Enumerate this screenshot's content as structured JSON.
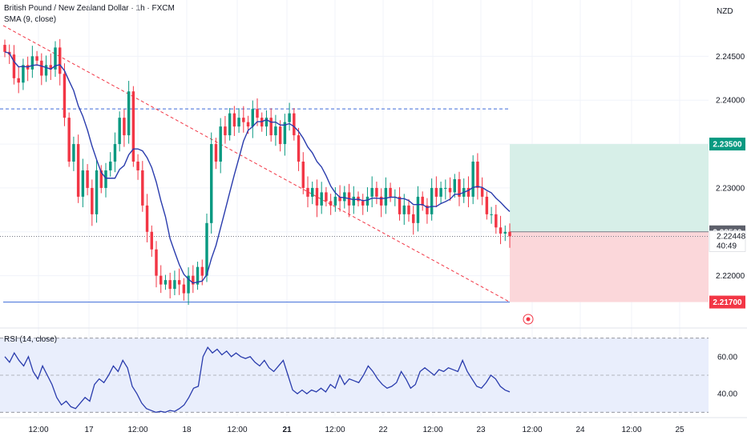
{
  "header": {
    "title": "British Pound / New Zealand Dollar · 1h · FXCM",
    "sma_label": "SMA (9, close)",
    "currency": "NZD"
  },
  "colors": {
    "up": "#089981",
    "down": "#f23645",
    "sma": "#2a3cad",
    "rsi": "#2a3cad",
    "hline": "#3d6bd9",
    "trendline": "#f23645",
    "target_zone": "#d7efe8",
    "stop_zone": "#fbd7da",
    "rsi_band": "#e9eefc",
    "current_price": "#787b86"
  },
  "chart_data": [
    {
      "type": "candlestick",
      "title": "British Pound / New Zealand Dollar · 1h · FXCM",
      "indicator": "SMA (9, close)",
      "y_ticks": [
        2.245,
        2.24,
        2.235,
        2.23,
        2.225,
        2.22
      ],
      "y_tick_labels": [
        "2.24500",
        "2.24000",
        "2.23500",
        "2.23000",
        "2.22500",
        "2.22000"
      ],
      "x_tick_labels": [
        "12:00",
        "17",
        "12:00",
        "18",
        "12:00",
        "21",
        "12:00",
        "22",
        "12:00",
        "23",
        "12:00",
        "24",
        "12:00",
        "25"
      ],
      "ylim": [
        2.2145,
        2.2505
      ],
      "close_series": [
        2.2455,
        2.2452,
        2.2425,
        2.242,
        2.244,
        2.2435,
        2.245,
        2.2445,
        2.2428,
        2.244,
        2.2435,
        2.246,
        2.243,
        2.238,
        2.233,
        2.235,
        2.229,
        2.232,
        2.23,
        2.227,
        2.232,
        2.23,
        2.232,
        2.233,
        2.235,
        2.238,
        2.236,
        2.241,
        2.233,
        2.232,
        2.228,
        2.225,
        2.223,
        2.22,
        2.219,
        2.2195,
        2.2185,
        2.2195,
        2.219,
        2.218,
        2.22,
        2.219,
        2.221,
        2.22,
        2.226,
        2.235,
        2.233,
        2.237,
        2.236,
        2.2385,
        2.237,
        2.238,
        2.2375,
        2.237,
        2.239,
        2.238,
        2.237,
        2.238,
        2.236,
        2.237,
        2.235,
        2.2375,
        2.2385,
        2.236,
        2.233,
        2.23,
        2.229,
        2.23,
        2.228,
        2.2295,
        2.2285,
        2.228,
        2.229,
        2.2285,
        2.2295,
        2.228,
        2.229,
        2.2285,
        2.228,
        2.229,
        2.23,
        2.229,
        2.228,
        2.23,
        2.229,
        2.229,
        2.227,
        2.228,
        2.227,
        2.226,
        2.229,
        2.228,
        2.227,
        2.23,
        2.229,
        2.23,
        2.23,
        2.2295,
        2.231,
        2.229,
        2.23,
        2.229,
        2.233,
        2.23,
        2.229,
        2.227,
        2.227,
        2.2255,
        2.2248,
        2.225,
        2.2245
      ],
      "sma_last": 2.2275,
      "current_price": "2.22448",
      "countdown": "40:49",
      "horizontal_lines": [
        2.239,
        2.217
      ],
      "trendline": {
        "from": 2.2485,
        "to": 2.217
      },
      "position": {
        "entry": "2.22500",
        "target": "2.23500",
        "stop": "2.21700"
      }
    },
    {
      "type": "line",
      "title": "RSI (14, close)",
      "ylim": [
        28,
        72
      ],
      "band": [
        30,
        70
      ],
      "midline": 50,
      "y_tick_labels": [
        "60.00",
        "40.00"
      ],
      "values": [
        60,
        57,
        62,
        58,
        55,
        60,
        52,
        48,
        55,
        50,
        45,
        38,
        34,
        36,
        33,
        32,
        35,
        38,
        36,
        45,
        48,
        46,
        50,
        55,
        52,
        58,
        54,
        44,
        40,
        35,
        32,
        31,
        30,
        30.5,
        30,
        31,
        30.5,
        32,
        34,
        38,
        43,
        44,
        60,
        65,
        62,
        64,
        61,
        63,
        60,
        62,
        60,
        59,
        60,
        57,
        55,
        58,
        54,
        52,
        55,
        58,
        50,
        42,
        40,
        42,
        40,
        42,
        41,
        43,
        41,
        45,
        43,
        50,
        45,
        48,
        47,
        46,
        50,
        55,
        52,
        48,
        45,
        43,
        44,
        46,
        52,
        48,
        43,
        45,
        52,
        54,
        52,
        50,
        53,
        52,
        54,
        53,
        52,
        58,
        52,
        48,
        44,
        43,
        46,
        50,
        48,
        44,
        42,
        41
      ]
    }
  ]
}
